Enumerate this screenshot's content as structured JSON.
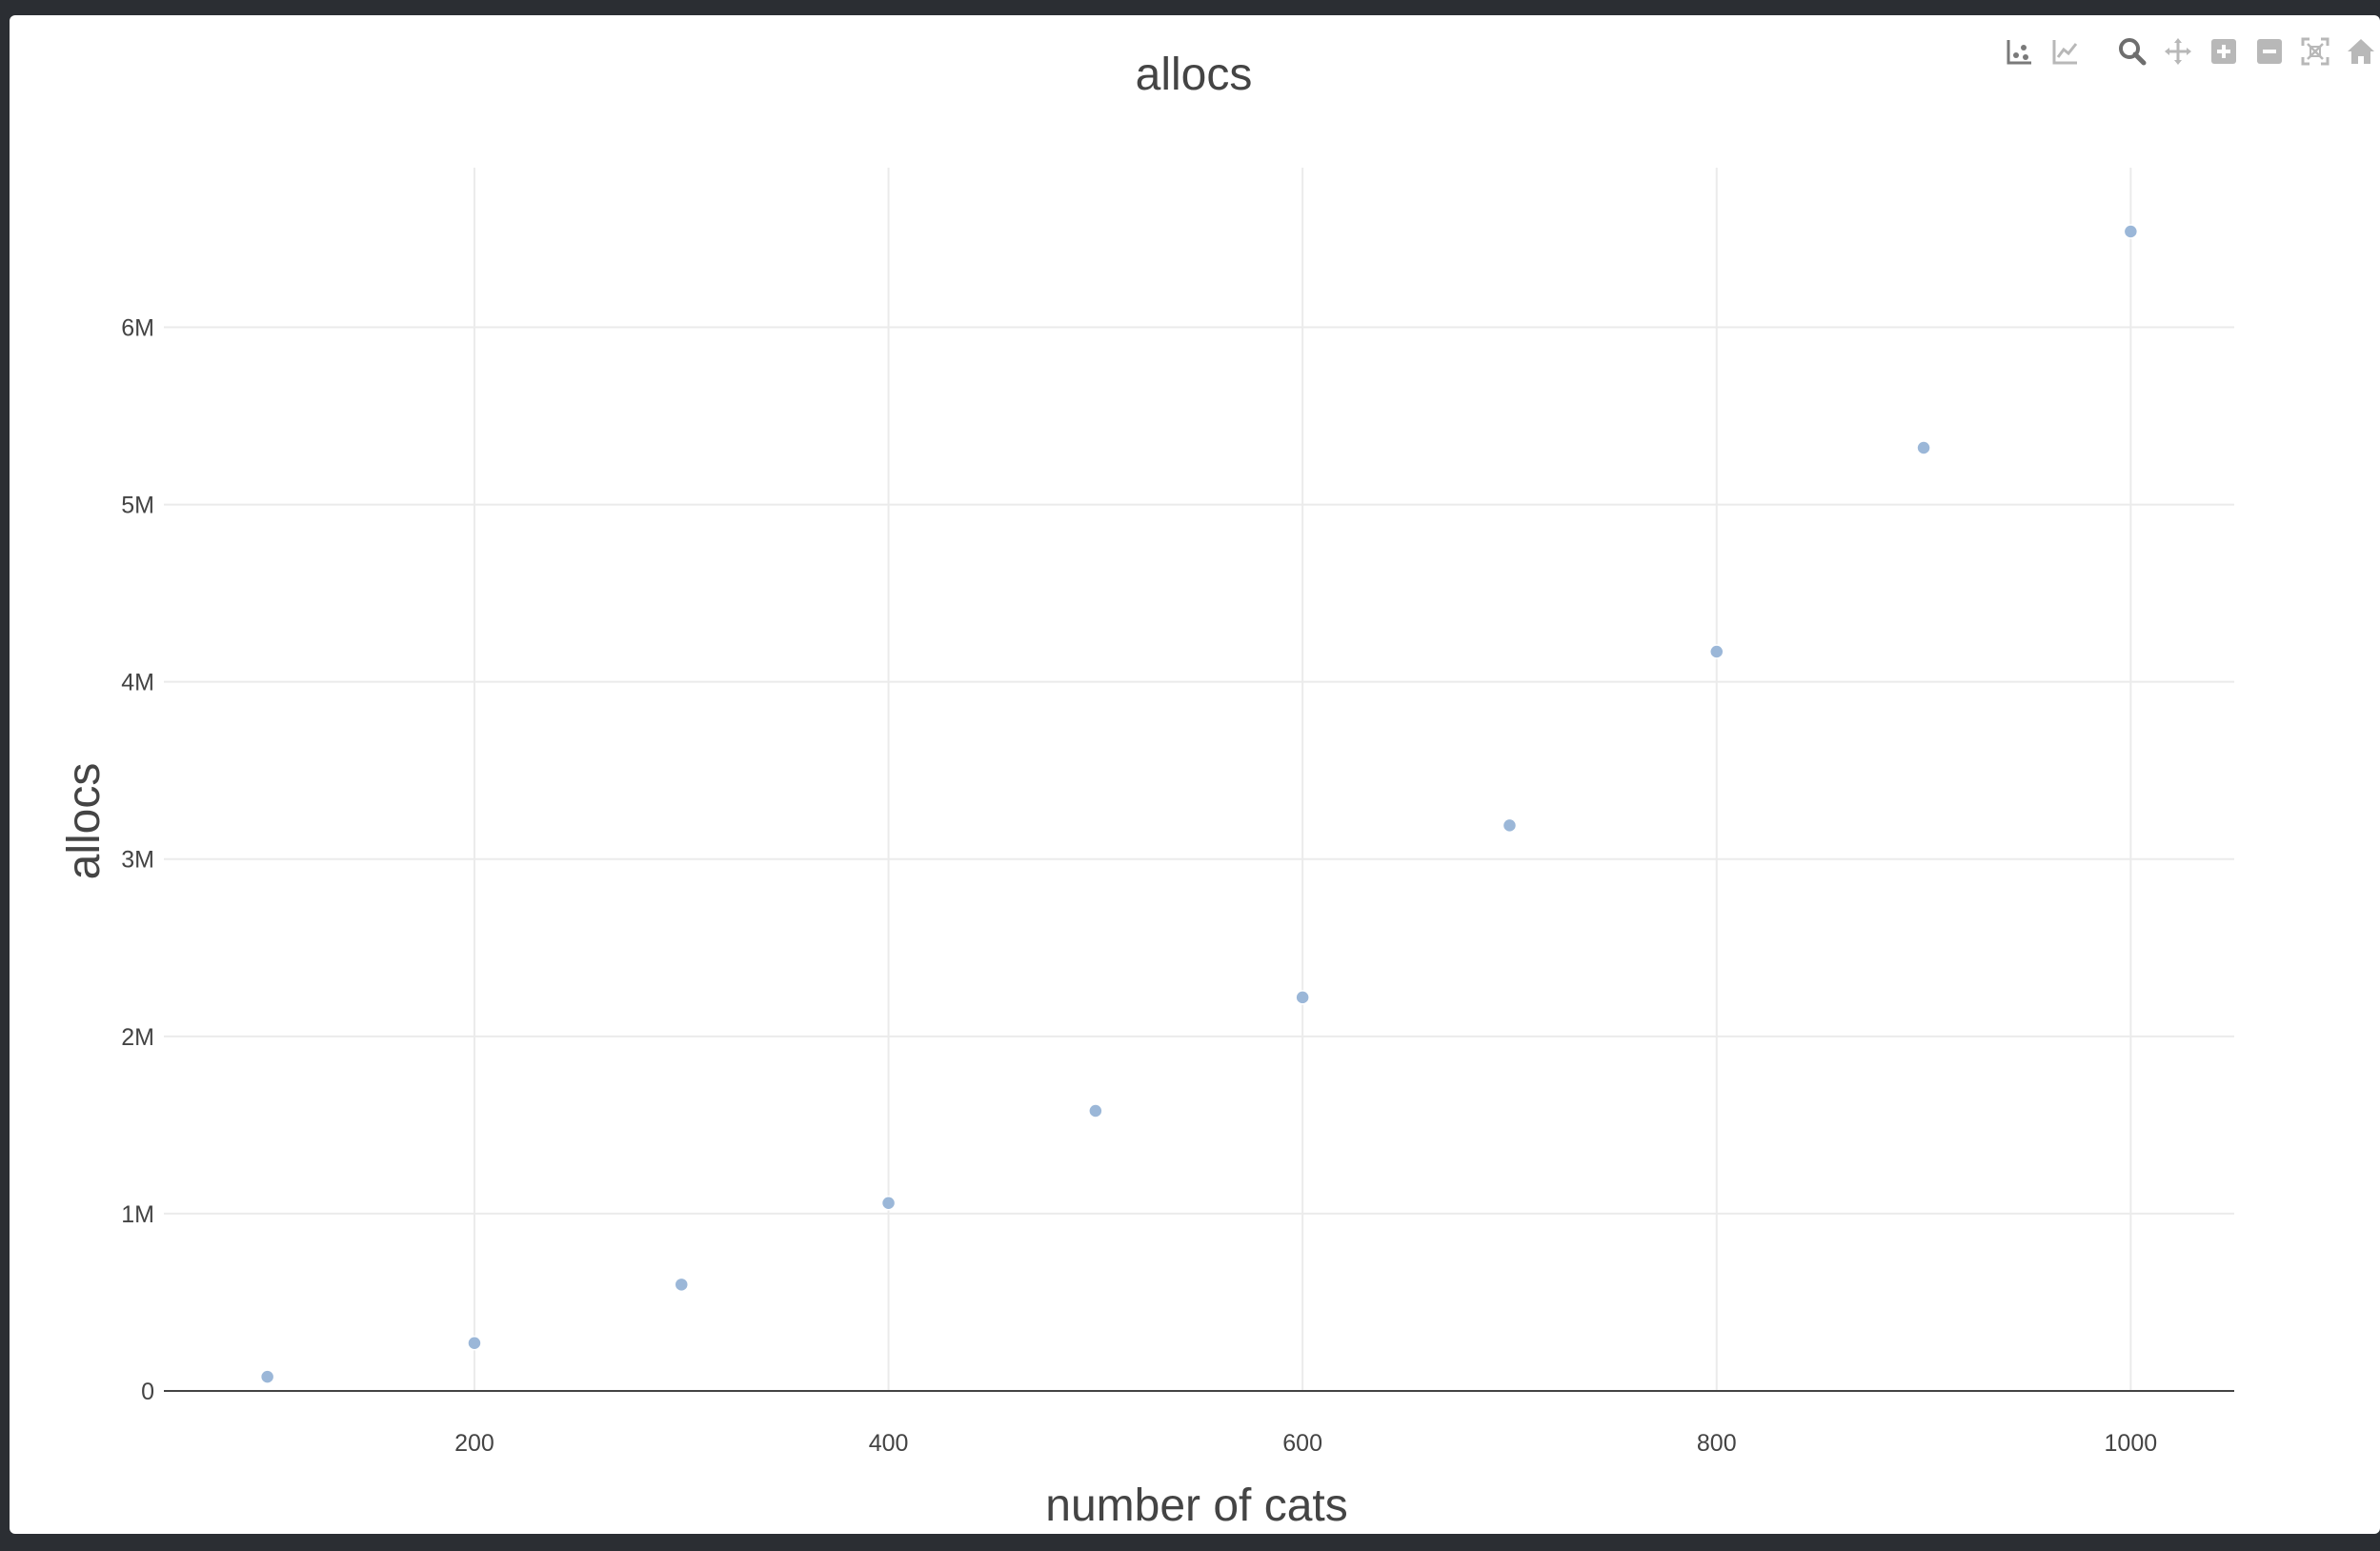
{
  "modebar": {
    "buttons": [
      {
        "name": "compare-data-hover-button",
        "icon": "hover-closest-icon"
      },
      {
        "name": "show-closest-hover-button",
        "icon": "hover-compare-icon"
      },
      {
        "name": "zoom-button",
        "icon": "zoom-icon"
      },
      {
        "name": "pan-button",
        "icon": "pan-icon"
      },
      {
        "name": "zoom-in-button",
        "icon": "zoom-in-icon"
      },
      {
        "name": "zoom-out-button",
        "icon": "zoom-out-icon"
      },
      {
        "name": "autoscale-button",
        "icon": "autoscale-icon"
      },
      {
        "name": "reset-axes-button",
        "icon": "home-icon"
      }
    ]
  },
  "colors": {
    "marker": "#9bb7d8",
    "grid": "#ebebeb",
    "zeroline": "#444444",
    "text": "#444444",
    "icon_idle": "#b8b8b8",
    "icon_active": "#7a7a7a"
  },
  "chart_data": {
    "type": "scatter",
    "title": "allocs",
    "xlabel": "number of cats",
    "ylabel": "allocs",
    "xlim": [
      50,
      1050
    ],
    "ylim": [
      0,
      6.9
    ],
    "x_ticks": [
      {
        "value": 200,
        "label": "200"
      },
      {
        "value": 400,
        "label": "400"
      },
      {
        "value": 600,
        "label": "600"
      },
      {
        "value": 800,
        "label": "800"
      },
      {
        "value": 1000,
        "label": "1000"
      }
    ],
    "y_ticks": [
      {
        "value": 0,
        "label": "0"
      },
      {
        "value": 1,
        "label": "1M"
      },
      {
        "value": 2,
        "label": "2M"
      },
      {
        "value": 3,
        "label": "3M"
      },
      {
        "value": 4,
        "label": "4M"
      },
      {
        "value": 5,
        "label": "5M"
      },
      {
        "value": 6,
        "label": "6M"
      }
    ],
    "y_unit": "millions",
    "grid": true,
    "x": [
      100,
      200,
      300,
      400,
      500,
      600,
      700,
      800,
      900,
      1000
    ],
    "y": [
      0.08,
      0.27,
      0.6,
      1.06,
      1.58,
      2.22,
      3.19,
      4.17,
      5.32,
      6.54
    ]
  }
}
